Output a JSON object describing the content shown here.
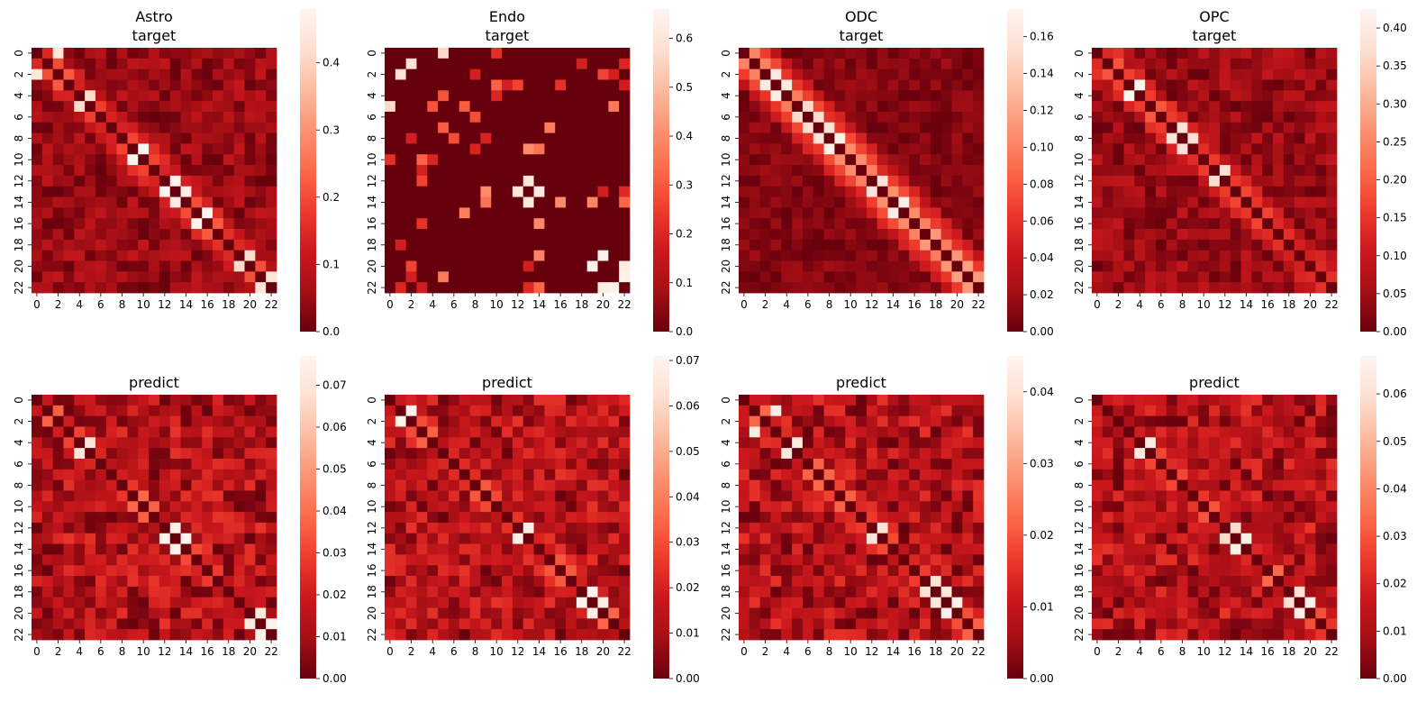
{
  "figure": {
    "grid_rows": 2,
    "grid_cols": 4,
    "colormap": "Reds_r",
    "colormap_stops": [
      "#67000d",
      "#a50f15",
      "#cb181d",
      "#ef3b2c",
      "#fb6a4a",
      "#fc9272",
      "#fcbba1",
      "#fee0d2",
      "#fff5f0"
    ]
  },
  "chart_data": [
    {
      "type": "heatmap",
      "title": [
        "Astro",
        "target"
      ],
      "matrix_size": 23,
      "x_ticks": [
        "0",
        "2",
        "4",
        "6",
        "8",
        "10",
        "12",
        "14",
        "16",
        "18",
        "20",
        "22"
      ],
      "y_ticks": [
        "0",
        "2",
        "4",
        "6",
        "8",
        "10",
        "12",
        "14",
        "16",
        "18",
        "20",
        "22"
      ],
      "colorbar": {
        "min": 0,
        "max": 0.48,
        "ticks": [
          "0.0",
          "0.1",
          "0.2",
          "0.3",
          "0.4"
        ],
        "tick_values": [
          0,
          0.1,
          0.2,
          0.3,
          0.4
        ]
      },
      "pattern": {
        "seed": 11,
        "structure": "diagonal",
        "sparsity": 0.0,
        "hot_pairs": [
          [
            4,
            5
          ],
          [
            12,
            13
          ],
          [
            13,
            14
          ],
          [
            15,
            16
          ],
          [
            19,
            20
          ],
          [
            21,
            22
          ],
          [
            0,
            2
          ],
          [
            9,
            10
          ]
        ]
      }
    },
    {
      "type": "heatmap",
      "title": [
        "Endo",
        "target"
      ],
      "matrix_size": 23,
      "x_ticks": [
        "0",
        "2",
        "4",
        "6",
        "8",
        "10",
        "12",
        "14",
        "16",
        "18",
        "20",
        "22"
      ],
      "y_ticks": [
        "0",
        "2",
        "4",
        "6",
        "8",
        "10",
        "12",
        "14",
        "16",
        "18",
        "20",
        "22"
      ],
      "colorbar": {
        "min": 0,
        "max": 0.66,
        "ticks": [
          "0.0",
          "0.1",
          "0.2",
          "0.3",
          "0.4",
          "0.5",
          "0.6"
        ],
        "tick_values": [
          0,
          0.1,
          0.2,
          0.3,
          0.4,
          0.5,
          0.6
        ]
      },
      "pattern": {
        "seed": 23,
        "structure": "sparse",
        "sparsity": 0.9,
        "hot_pairs": [
          [
            1,
            2
          ],
          [
            12,
            13
          ],
          [
            13,
            14
          ],
          [
            19,
            20
          ],
          [
            20,
            22
          ],
          [
            21,
            22
          ],
          [
            0,
            5
          ]
        ]
      }
    },
    {
      "type": "heatmap",
      "title": [
        "ODC",
        "target"
      ],
      "matrix_size": 23,
      "x_ticks": [
        "0",
        "2",
        "4",
        "6",
        "8",
        "10",
        "12",
        "14",
        "16",
        "18",
        "20",
        "22"
      ],
      "y_ticks": [
        "0",
        "2",
        "4",
        "6",
        "8",
        "10",
        "12",
        "14",
        "16",
        "18",
        "20",
        "22"
      ],
      "colorbar": {
        "min": 0,
        "max": 0.175,
        "ticks": [
          "0.00",
          "0.02",
          "0.04",
          "0.06",
          "0.08",
          "0.10",
          "0.12",
          "0.14",
          "0.16"
        ],
        "tick_values": [
          0,
          0.02,
          0.04,
          0.06,
          0.08,
          0.1,
          0.12,
          0.14,
          0.16
        ]
      },
      "pattern": {
        "seed": 37,
        "structure": "strong-diagonal",
        "sparsity": 0.0,
        "hot_pairs": [
          [
            2,
            3
          ],
          [
            3,
            4
          ],
          [
            5,
            6
          ],
          [
            6,
            7
          ],
          [
            7,
            8
          ],
          [
            8,
            9
          ],
          [
            12,
            13
          ],
          [
            14,
            15
          ]
        ]
      }
    },
    {
      "type": "heatmap",
      "title": [
        "OPC",
        "target"
      ],
      "matrix_size": 23,
      "x_ticks": [
        "0",
        "2",
        "4",
        "6",
        "8",
        "10",
        "12",
        "14",
        "16",
        "18",
        "20",
        "22"
      ],
      "y_ticks": [
        "0",
        "2",
        "4",
        "6",
        "8",
        "10",
        "12",
        "14",
        "16",
        "18",
        "20",
        "22"
      ],
      "colorbar": {
        "min": 0,
        "max": 0.425,
        "ticks": [
          "0.00",
          "0.05",
          "0.10",
          "0.15",
          "0.20",
          "0.25",
          "0.30",
          "0.35",
          "0.40"
        ],
        "tick_values": [
          0,
          0.05,
          0.1,
          0.15,
          0.2,
          0.25,
          0.3,
          0.35,
          0.4
        ]
      },
      "pattern": {
        "seed": 41,
        "structure": "diagonal",
        "sparsity": 0.0,
        "hot_pairs": [
          [
            7,
            8
          ],
          [
            11,
            12
          ],
          [
            3,
            4
          ],
          [
            8,
            9
          ]
        ]
      }
    },
    {
      "type": "heatmap",
      "title": [
        "predict"
      ],
      "matrix_size": 23,
      "x_ticks": [
        "0",
        "2",
        "4",
        "6",
        "8",
        "10",
        "12",
        "14",
        "16",
        "18",
        "20",
        "22"
      ],
      "y_ticks": [
        "0",
        "2",
        "4",
        "6",
        "8",
        "10",
        "12",
        "14",
        "16",
        "18",
        "20",
        "22"
      ],
      "colorbar": {
        "min": 0,
        "max": 0.077,
        "ticks": [
          "0.00",
          "0.01",
          "0.02",
          "0.03",
          "0.04",
          "0.05",
          "0.06",
          "0.07"
        ],
        "tick_values": [
          0,
          0.01,
          0.02,
          0.03,
          0.04,
          0.05,
          0.06,
          0.07
        ]
      },
      "pattern": {
        "seed": 53,
        "structure": "noisy-diagonal",
        "sparsity": 0.0,
        "hot_pairs": [
          [
            4,
            5
          ],
          [
            12,
            13
          ],
          [
            13,
            14
          ],
          [
            20,
            21
          ],
          [
            21,
            22
          ]
        ]
      }
    },
    {
      "type": "heatmap",
      "title": [
        "predict"
      ],
      "matrix_size": 23,
      "x_ticks": [
        "0",
        "2",
        "4",
        "6",
        "8",
        "10",
        "12",
        "14",
        "16",
        "18",
        "20",
        "22"
      ],
      "y_ticks": [
        "0",
        "2",
        "4",
        "6",
        "8",
        "10",
        "12",
        "14",
        "16",
        "18",
        "20",
        "22"
      ],
      "colorbar": {
        "min": 0,
        "max": 0.071,
        "ticks": [
          "0.00",
          "0.01",
          "0.02",
          "0.03",
          "0.04",
          "0.05",
          "0.06",
          "0.07"
        ],
        "tick_values": [
          0,
          0.01,
          0.02,
          0.03,
          0.04,
          0.05,
          0.06,
          0.07
        ]
      },
      "pattern": {
        "seed": 61,
        "structure": "noisy-diagonal",
        "sparsity": 0.0,
        "hot_pairs": [
          [
            12,
            13
          ],
          [
            1,
            2
          ],
          [
            18,
            19
          ],
          [
            19,
            20
          ]
        ]
      }
    },
    {
      "type": "heatmap",
      "title": [
        "predict"
      ],
      "matrix_size": 23,
      "x_ticks": [
        "0",
        "2",
        "4",
        "6",
        "8",
        "10",
        "12",
        "14",
        "16",
        "18",
        "20",
        "22"
      ],
      "y_ticks": [
        "0",
        "2",
        "4",
        "6",
        "8",
        "10",
        "12",
        "14",
        "16",
        "18",
        "20",
        "22"
      ],
      "colorbar": {
        "min": 0,
        "max": 0.045,
        "ticks": [
          "0.00",
          "0.01",
          "0.02",
          "0.03",
          "0.04"
        ],
        "tick_values": [
          0,
          0.01,
          0.02,
          0.03,
          0.04
        ]
      },
      "pattern": {
        "seed": 71,
        "structure": "noisy-diagonal",
        "sparsity": 0.0,
        "hot_pairs": [
          [
            4,
            5
          ],
          [
            12,
            13
          ],
          [
            17,
            18
          ],
          [
            18,
            19
          ],
          [
            19,
            20
          ],
          [
            1,
            3
          ]
        ]
      }
    },
    {
      "type": "heatmap",
      "title": [
        "predict"
      ],
      "matrix_size": 23,
      "x_ticks": [
        "0",
        "2",
        "4",
        "6",
        "8",
        "10",
        "12",
        "14",
        "16",
        "18",
        "20",
        "22"
      ],
      "y_ticks": [
        "0",
        "2",
        "4",
        "6",
        "8",
        "10",
        "12",
        "14",
        "16",
        "18",
        "20",
        "22"
      ],
      "colorbar": {
        "min": 0,
        "max": 0.068,
        "ticks": [
          "0.00",
          "0.01",
          "0.02",
          "0.03",
          "0.04",
          "0.05",
          "0.06"
        ],
        "tick_values": [
          0,
          0.01,
          0.02,
          0.03,
          0.04,
          0.05,
          0.06
        ]
      },
      "pattern": {
        "seed": 83,
        "structure": "noisy-diagonal",
        "sparsity": 0.0,
        "hot_pairs": [
          [
            4,
            5
          ],
          [
            12,
            13
          ],
          [
            18,
            19
          ],
          [
            19,
            20
          ],
          [
            13,
            14
          ]
        ]
      }
    }
  ]
}
